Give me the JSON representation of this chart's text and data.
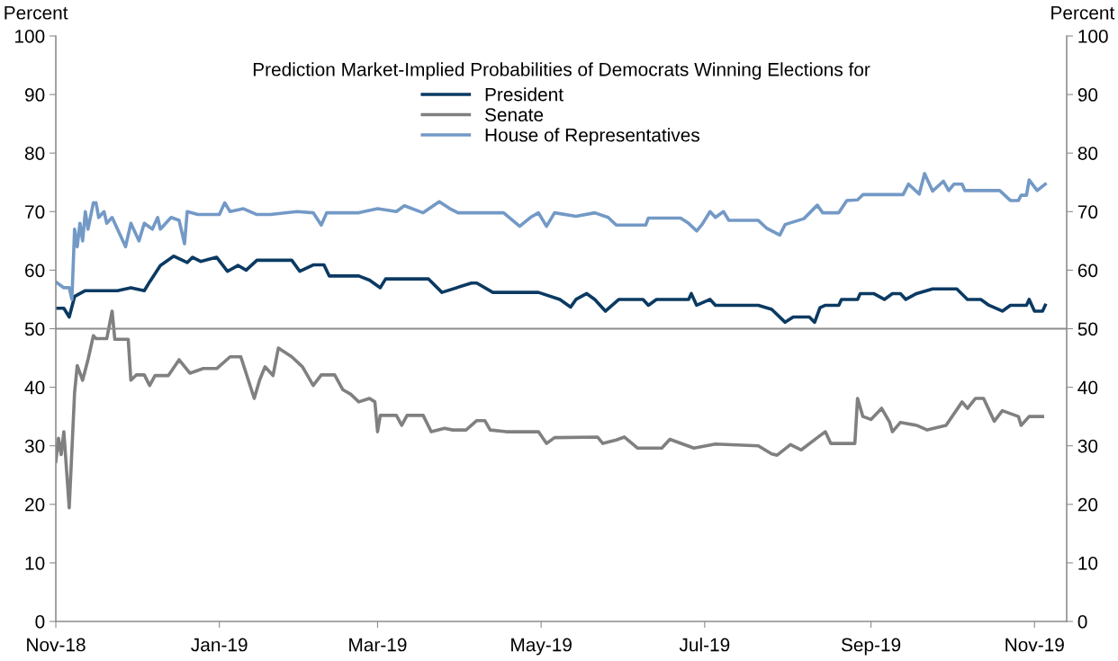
{
  "chart_data": {
    "type": "line",
    "title": "Prediction Market-Implied Probabilities of Democrats Winning Elections for",
    "ylabel": "Percent",
    "y2label": "Percent",
    "xlim": [
      "2018-11-01",
      "2019-11-13"
    ],
    "xticks": [
      {
        "value": "2018-11-01",
        "label": "Nov-18"
      },
      {
        "value": "2019-01-01",
        "label": "Jan-19"
      },
      {
        "value": "2019-03-01",
        "label": "Mar-19"
      },
      {
        "value": "2019-05-01",
        "label": "May-19"
      },
      {
        "value": "2019-07-01",
        "label": "Jul-19"
      },
      {
        "value": "2019-09-01",
        "label": "Sep-19"
      },
      {
        "value": "2019-11-01",
        "label": "Nov-19"
      }
    ],
    "ylim": [
      0,
      100
    ],
    "yticks": [
      0,
      10,
      20,
      30,
      40,
      50,
      60,
      70,
      80,
      90,
      100
    ],
    "y2lim": [
      0,
      100
    ],
    "y2ticks": [
      0,
      10,
      20,
      30,
      40,
      50,
      60,
      70,
      80,
      90,
      100
    ],
    "ref_lines": [
      {
        "axis": "y",
        "value": 50,
        "label": null,
        "color": "#8c8c8c"
      }
    ],
    "grid": false,
    "legend": "top",
    "marker": "none",
    "line_style": "solid",
    "series": [
      {
        "name": "President",
        "color": "#0b3a62",
        "x": [
          "2018-11-01",
          "2018-11-04",
          "2018-11-06",
          "2018-11-08",
          "2018-11-12",
          "2018-11-24",
          "2018-11-29",
          "2018-12-04",
          "2018-12-06",
          "2018-12-10",
          "2018-12-15",
          "2018-12-20",
          "2018-12-22",
          "2018-12-25",
          "2018-12-31",
          "2019-01-04",
          "2019-01-08",
          "2019-01-11",
          "2019-01-15",
          "2019-01-21",
          "2019-01-28",
          "2019-01-31",
          "2019-02-05",
          "2019-02-09",
          "2019-02-11",
          "2019-02-22",
          "2019-02-26",
          "2019-03-02",
          "2019-03-04",
          "2019-03-20",
          "2019-03-25",
          "2019-04-05",
          "2019-04-07",
          "2019-04-13",
          "2019-04-30",
          "2019-05-08",
          "2019-05-12",
          "2019-05-14",
          "2019-05-18",
          "2019-05-21",
          "2019-05-25",
          "2019-05-30",
          "2019-06-08",
          "2019-06-10",
          "2019-06-13",
          "2019-06-25",
          "2019-06-26",
          "2019-06-28",
          "2019-07-03",
          "2019-07-05",
          "2019-07-21",
          "2019-07-26",
          "2019-07-31",
          "2019-08-03",
          "2019-08-09",
          "2019-08-11",
          "2019-08-13",
          "2019-08-15",
          "2019-08-20",
          "2019-08-21",
          "2019-08-27",
          "2019-08-28",
          "2019-09-02",
          "2019-09-06",
          "2019-09-09",
          "2019-09-12",
          "2019-09-14",
          "2019-09-18",
          "2019-09-24",
          "2019-10-03",
          "2019-10-07",
          "2019-10-12",
          "2019-10-15",
          "2019-10-20",
          "2019-10-23",
          "2019-10-29",
          "2019-10-30",
          "2019-11-01",
          "2019-11-04",
          "2019-11-05"
        ],
        "values": [
          53.5,
          53.5,
          52.0,
          55.5,
          56.5,
          56.5,
          57,
          56.5,
          58,
          60.8,
          62.4,
          61.3,
          62.2,
          61.5,
          62.2,
          59.8,
          60.8,
          60.0,
          61.7,
          61.7,
          61.7,
          59.8,
          60.9,
          60.9,
          59.0,
          59.0,
          58.3,
          57.0,
          58.5,
          58.5,
          56.2,
          57.8,
          57.8,
          56.2,
          56.2,
          55.0,
          53.7,
          55.0,
          56.0,
          55.0,
          53.0,
          55.0,
          55.0,
          54.0,
          55.0,
          55.0,
          56.0,
          54.0,
          55.0,
          54.0,
          54.0,
          53.3,
          51.1,
          52.0,
          52.0,
          51.1,
          53.6,
          54.0,
          54.0,
          55.0,
          55.0,
          56.0,
          56.0,
          55.0,
          56.0,
          56.0,
          55.0,
          56.0,
          56.8,
          56.8,
          55.0,
          55.0,
          54.0,
          53.0,
          54.0,
          54.0,
          55.0,
          53.0,
          53.0,
          54.0
        ]
      },
      {
        "name": "Senate",
        "color": "#808080",
        "x": [
          "2018-11-01",
          "2018-11-02",
          "2018-11-03",
          "2018-11-04",
          "2018-11-06",
          "2018-11-08",
          "2018-11-09",
          "2018-11-11",
          "2018-11-13",
          "2018-11-15",
          "2018-11-16",
          "2018-11-20",
          "2018-11-22",
          "2018-11-23",
          "2018-11-28",
          "2018-11-29",
          "2018-12-01",
          "2018-12-04",
          "2018-12-06",
          "2018-12-08",
          "2018-12-13",
          "2018-12-17",
          "2018-12-21",
          "2018-12-26",
          "2018-12-31",
          "2019-01-05",
          "2019-01-09",
          "2019-01-14",
          "2019-01-16",
          "2019-01-18",
          "2019-01-21",
          "2019-01-23",
          "2019-01-28",
          "2019-02-01",
          "2019-02-05",
          "2019-02-08",
          "2019-02-13",
          "2019-02-16",
          "2019-02-19",
          "2019-02-22",
          "2019-02-26",
          "2019-02-28",
          "2019-03-01",
          "2019-03-02",
          "2019-03-08",
          "2019-03-10",
          "2019-03-12",
          "2019-03-18",
          "2019-03-21",
          "2019-03-26",
          "2019-03-29",
          "2019-04-03",
          "2019-04-07",
          "2019-04-10",
          "2019-04-12",
          "2019-04-18",
          "2019-04-30",
          "2019-05-03",
          "2019-05-06",
          "2019-05-22",
          "2019-05-24",
          "2019-05-29",
          "2019-06-01",
          "2019-06-06",
          "2019-06-15",
          "2019-06-18",
          "2019-06-27",
          "2019-07-05",
          "2019-07-21",
          "2019-07-26",
          "2019-07-28",
          "2019-08-02",
          "2019-08-06",
          "2019-08-12",
          "2019-08-15",
          "2019-08-17",
          "2019-08-26",
          "2019-08-27",
          "2019-08-29",
          "2019-09-01",
          "2019-09-05",
          "2019-09-08",
          "2019-09-09",
          "2019-09-12",
          "2019-09-18",
          "2019-09-22",
          "2019-09-29",
          "2019-10-05",
          "2019-10-07",
          "2019-10-10",
          "2019-10-13",
          "2019-10-17",
          "2019-10-20",
          "2019-10-26",
          "2019-10-27",
          "2019-10-30",
          "2019-11-04"
        ],
        "values": [
          27.3,
          31.3,
          28.5,
          32.4,
          19.4,
          39.1,
          43.7,
          41.2,
          44.7,
          48.8,
          48.3,
          48.3,
          53.0,
          48.2,
          48.2,
          41.2,
          42.1,
          42.1,
          40.3,
          42.0,
          42.0,
          44.7,
          42.4,
          43.2,
          43.2,
          45.2,
          45.2,
          38.1,
          41.2,
          43.5,
          42.0,
          46.7,
          45.2,
          43.5,
          40.3,
          42.1,
          42.1,
          39.6,
          38.8,
          37.5,
          38.1,
          37.5,
          32.4,
          35.2,
          35.2,
          33.5,
          35.2,
          35.2,
          32.4,
          33.0,
          32.7,
          32.7,
          34.3,
          34.3,
          32.7,
          32.4,
          32.4,
          30.4,
          31.4,
          31.5,
          30.4,
          31.0,
          31.5,
          29.6,
          29.6,
          31.1,
          29.6,
          30.3,
          30.0,
          28.6,
          28.4,
          30.2,
          29.3,
          31.4,
          32.4,
          30.4,
          30.4,
          38.1,
          35.0,
          34.5,
          36.4,
          34.0,
          32.4,
          34.0,
          33.5,
          32.7,
          33.5,
          37.5,
          36.4,
          38.1,
          38.1,
          34.2,
          36.0,
          35.0,
          33.5,
          35.0,
          35.0
        ]
      },
      {
        "name": "House of Representatives",
        "color": "#7399c6",
        "x": [
          "2018-11-01",
          "2018-11-04",
          "2018-11-06",
          "2018-11-07",
          "2018-11-08",
          "2018-11-09",
          "2018-11-10",
          "2018-11-11",
          "2018-11-12",
          "2018-11-13",
          "2018-11-15",
          "2018-11-16",
          "2018-11-17",
          "2018-11-19",
          "2018-11-20",
          "2018-11-22",
          "2018-11-24",
          "2018-11-25",
          "2018-11-27",
          "2018-11-29",
          "2018-11-30",
          "2018-12-02",
          "2018-12-04",
          "2018-12-07",
          "2018-12-09",
          "2018-12-10",
          "2018-12-14",
          "2018-12-17",
          "2018-12-19",
          "2018-12-20",
          "2018-12-24",
          "2019-01-01",
          "2019-01-03",
          "2019-01-05",
          "2019-01-10",
          "2019-01-15",
          "2019-01-20",
          "2019-01-30",
          "2019-02-05",
          "2019-02-08",
          "2019-02-10",
          "2019-02-22",
          "2019-03-01",
          "2019-03-08",
          "2019-03-11",
          "2019-03-18",
          "2019-03-24",
          "2019-03-28",
          "2019-03-31",
          "2019-04-17",
          "2019-04-23",
          "2019-04-27",
          "2019-04-30",
          "2019-05-03",
          "2019-05-06",
          "2019-05-14",
          "2019-05-21",
          "2019-05-26",
          "2019-05-29",
          "2019-06-09",
          "2019-06-10",
          "2019-06-22",
          "2019-06-25",
          "2019-06-28",
          "2019-06-30",
          "2019-07-03",
          "2019-07-05",
          "2019-07-08",
          "2019-07-10",
          "2019-07-21",
          "2019-07-24",
          "2019-07-29",
          "2019-07-31",
          "2019-08-07",
          "2019-08-12",
          "2019-08-14",
          "2019-08-20",
          "2019-08-23",
          "2019-08-27",
          "2019-08-29",
          "2019-09-13",
          "2019-09-15",
          "2019-09-19",
          "2019-09-21",
          "2019-09-24",
          "2019-09-28",
          "2019-09-30",
          "2019-10-02",
          "2019-10-05",
          "2019-10-06",
          "2019-10-19",
          "2019-10-23",
          "2019-10-26",
          "2019-10-27",
          "2019-10-29",
          "2019-10-30",
          "2019-11-02",
          "2019-11-05"
        ],
        "values": [
          58,
          57,
          57,
          55,
          67,
          64,
          68,
          65,
          70,
          67,
          71.5,
          71.5,
          69,
          70,
          68,
          69,
          67,
          66,
          64,
          68,
          67,
          65,
          68,
          67,
          69,
          67,
          69,
          68.5,
          64.5,
          70,
          69.5,
          69.5,
          71.5,
          70,
          70.5,
          69.5,
          69.5,
          70,
          69.8,
          67.7,
          69.8,
          69.8,
          70.5,
          70.0,
          71,
          69.8,
          71.7,
          70.5,
          69.8,
          69.8,
          67.5,
          69.0,
          69.8,
          67.5,
          69.8,
          69.2,
          69.8,
          69.0,
          67.7,
          67.7,
          68.9,
          68.9,
          68.0,
          66.7,
          67.8,
          70.0,
          69.0,
          70.0,
          68.5,
          68.5,
          67.2,
          66.0,
          67.8,
          68.8,
          71.1,
          69.8,
          69.8,
          71.9,
          72.0,
          72.9,
          72.9,
          74.7,
          73.0,
          76.5,
          73.5,
          75.2,
          73.6,
          74.7,
          74.7,
          73.6,
          73.6,
          71.9,
          71.9,
          72.8,
          72.8,
          75.4,
          73.6,
          74.7
        ]
      }
    ]
  }
}
